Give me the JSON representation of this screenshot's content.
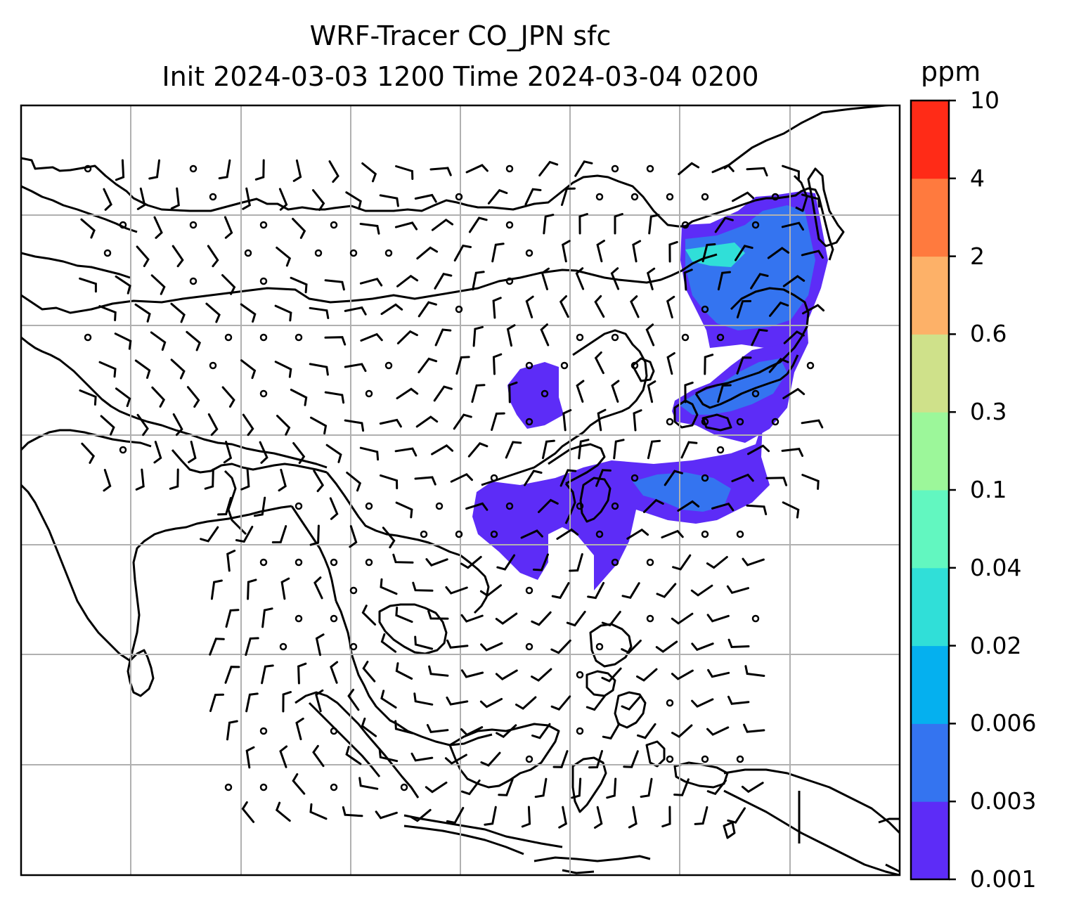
{
  "title": {
    "line1": "WRF-Tracer CO_JPN sfc",
    "line2": "Init 2024-03-03 1200 Time 2024-03-04 0200"
  },
  "colorbar": {
    "unit": "ppm",
    "levels": [
      "0.001",
      "0.003",
      "0.006",
      "0.02",
      "0.04",
      "0.1",
      "0.3",
      "0.6",
      "2",
      "4",
      "10"
    ],
    "colors": [
      "#5d2cf7",
      "#3474f0",
      "#05b0ef",
      "#30dfd8",
      "#62f7c0",
      "#9cf79a",
      "#cfe18a",
      "#fdb168",
      "#ff7a3e",
      "#ff2b17"
    ]
  },
  "map": {
    "description": "Surface CO tracer concentration over East/Southeast Asia with wind barbs",
    "gridlines": true
  }
}
